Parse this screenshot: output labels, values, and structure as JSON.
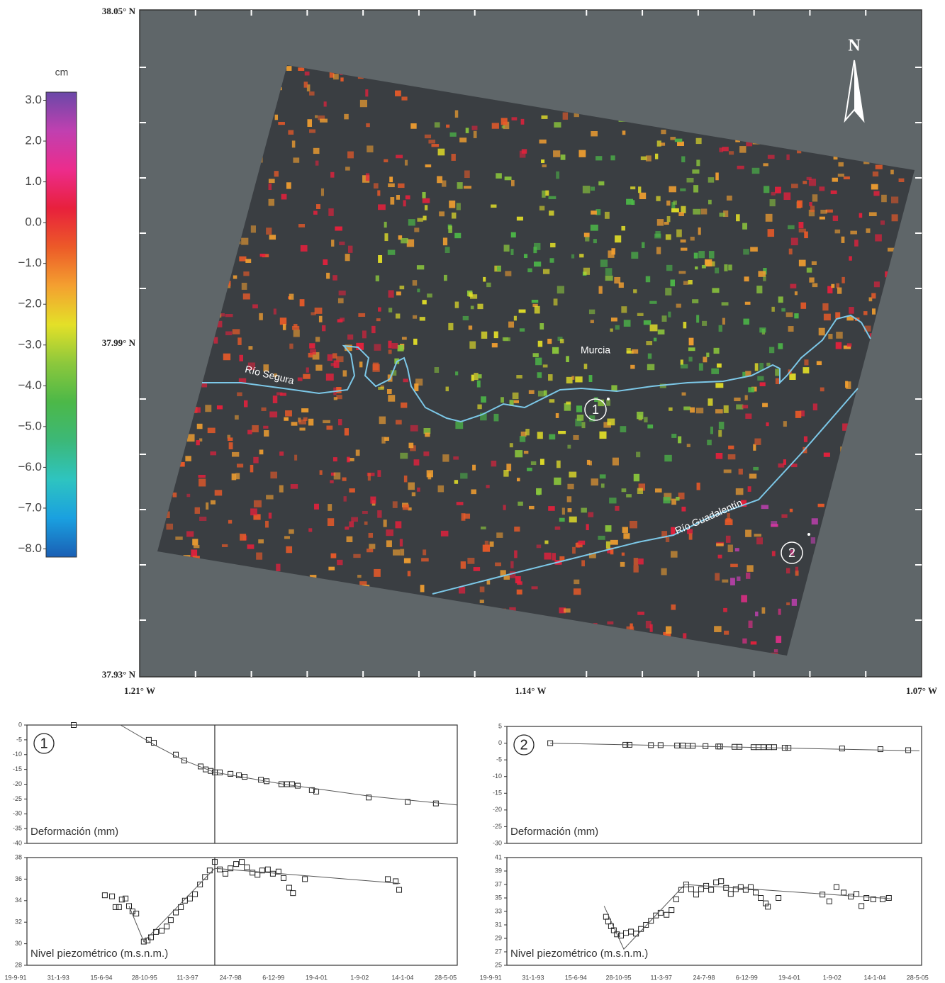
{
  "map": {
    "xlim": [
      -1.21,
      -1.07
    ],
    "ylim": [
      37.93,
      38.05
    ],
    "xticks": [
      {
        "value": -1.21,
        "label": "1.21° W"
      },
      {
        "value": -1.14,
        "label": "1.14° W"
      },
      {
        "value": -1.07,
        "label": "1.07° W"
      }
    ],
    "yticks": [
      {
        "value": 38.05,
        "label": "38.05° N"
      },
      {
        "value": 37.99,
        "label": "37.99° N"
      },
      {
        "value": 37.93,
        "label": "37.93° N"
      }
    ],
    "minor_xticks": [
      -1.2,
      -1.19,
      -1.18,
      -1.17,
      -1.16,
      -1.15,
      -1.13,
      -1.12,
      -1.11,
      -1.1,
      -1.09,
      -1.08
    ],
    "minor_yticks": [
      38.04,
      38.03,
      38.02,
      38.01,
      38.0,
      37.98,
      37.97,
      37.96,
      37.95,
      37.94
    ],
    "north": "N",
    "places": [
      "Murcia",
      "Río Segura",
      "Río Guadalentín"
    ],
    "sites": [
      "1",
      "2"
    ],
    "colorbar": {
      "unit": "cm",
      "clim": [
        -8.2,
        3.2
      ],
      "ticks": [
        {
          "value": 3,
          "label": "3.0"
        },
        {
          "value": 2,
          "label": "2.0"
        },
        {
          "value": 1,
          "label": "1.0"
        },
        {
          "value": 0,
          "label": "0.0"
        },
        {
          "value": -1,
          "label": "−1.0"
        },
        {
          "value": -2,
          "label": "−2.0"
        },
        {
          "value": -3,
          "label": "−3.0"
        },
        {
          "value": -4,
          "label": "−4.0"
        },
        {
          "value": -5,
          "label": "−5.0"
        },
        {
          "value": -6,
          "label": "−6.0"
        },
        {
          "value": -7,
          "label": "−7.0"
        },
        {
          "value": -8,
          "label": "−8.0"
        }
      ],
      "colors": [
        "#1a5fb4",
        "#1aa0e0",
        "#2ec4c0",
        "#3cb878",
        "#4cb848",
        "#8cc83c",
        "#e4e028",
        "#f4a030",
        "#ec5a28",
        "#e8203c",
        "#ec2c8c",
        "#c040b0",
        "#6a48a8"
      ]
    }
  },
  "chart_data": [
    {
      "type": "scatter",
      "point_label": "1",
      "label": "Deformación (mm)",
      "xlim": [
        1992.08,
        2005.78
      ],
      "ylim": [
        -40,
        0
      ],
      "yticks": [
        0,
        -5,
        -10,
        -15,
        -20,
        -25,
        -30,
        -35,
        -40
      ],
      "vline": 1998.06,
      "series": [
        {
          "mark": "square",
          "color": "#222222",
          "x": [
            1993.57,
            1995.96,
            1996.12,
            1996.82,
            1997.09,
            1997.61,
            1997.77,
            1997.93,
            1998.06,
            1998.22,
            1998.56,
            1998.83,
            1999.01,
            1999.53,
            1999.71,
            2000.18,
            2000.36,
            2000.52,
            2000.7,
            2001.15,
            2001.29,
            2002.96,
            2004.2,
            2005.1
          ],
          "values": [
            0,
            -5,
            -6,
            -10,
            -12,
            -14,
            -15,
            -15.5,
            -16,
            -16,
            -16.5,
            -17,
            -17.5,
            -18.5,
            -19,
            -20,
            -20,
            -20,
            -20.5,
            -22,
            -22.5,
            -24.5,
            -26,
            -26.5
          ]
        },
        {
          "mark": "line",
          "color": "#555555",
          "x": [
            1995.06,
            1996.19,
            1997.09,
            1998.06,
            2000.25,
            2002.96,
            2005.77
          ],
          "values": [
            0,
            -7,
            -12,
            -16,
            -20,
            -24,
            -27
          ]
        }
      ]
    },
    {
      "type": "scatter",
      "label": "Nivel piezométrico (m.s.n.m.)",
      "xlim": [
        1992.08,
        2005.78
      ],
      "ylim": [
        28,
        38
      ],
      "yticks": [
        28,
        30,
        32,
        34,
        36,
        38
      ],
      "vline": 1998.06,
      "xticks": [
        {
          "value": 1991.72,
          "label": "19-9-91"
        },
        {
          "value": 1993.08,
          "label": "31-1-93"
        },
        {
          "value": 1994.45,
          "label": "15-6-94"
        },
        {
          "value": 1995.82,
          "label": "28-10-95"
        },
        {
          "value": 1997.19,
          "label": "11-3-97"
        },
        {
          "value": 1998.56,
          "label": "24-7-98"
        },
        {
          "value": 1999.93,
          "label": "6-12-99"
        },
        {
          "value": 2001.3,
          "label": "19-4-01"
        },
        {
          "value": 2002.67,
          "label": "1-9-02"
        },
        {
          "value": 2004.04,
          "label": "14-1-04"
        },
        {
          "value": 2005.41,
          "label": "28-5-05"
        }
      ],
      "series": [
        {
          "mark": "square",
          "color": "#222222",
          "x": [
            1994.56,
            1994.79,
            1994.9,
            1995.01,
            1995.1,
            1995.22,
            1995.33,
            1995.44,
            1995.56,
            1995.8,
            1995.92,
            1996.03,
            1996.19,
            1996.37,
            1996.53,
            1996.66,
            1996.82,
            1996.98,
            1997.11,
            1997.27,
            1997.43,
            1997.59,
            1997.75,
            1997.9,
            1998.06,
            1998.22,
            1998.4,
            1998.56,
            1998.74,
            1998.92,
            1999.08,
            1999.26,
            1999.42,
            1999.57,
            1999.75,
            1999.91,
            2000.09,
            2000.25,
            2000.43,
            2000.55,
            2000.93,
            2003.57,
            2003.82,
            2003.93
          ],
          "values": [
            34.5,
            34.4,
            33.4,
            33.4,
            34.1,
            34.2,
            33.5,
            33,
            32.8,
            30.2,
            30.3,
            30.6,
            31.1,
            31.2,
            31.6,
            32.2,
            32.9,
            33.4,
            34,
            34.2,
            34.6,
            35.5,
            36.2,
            36.8,
            37.6,
            36.9,
            36.5,
            37,
            37.4,
            37.6,
            37.1,
            36.6,
            36.4,
            36.8,
            36.9,
            36.5,
            36.7,
            36.1,
            35.2,
            34.7,
            36,
            36,
            35.8,
            35
          ]
        },
        {
          "mark": "line",
          "color": "#555555",
          "x": [
            1995.33,
            1995.8,
            1998.06,
            2003.96
          ],
          "values": [
            33.5,
            30.2,
            37,
            35.6
          ]
        }
      ]
    },
    {
      "type": "scatter",
      "point_label": "2",
      "label": "Deformación (mm)",
      "xlim": [
        1992.24,
        2005.54
      ],
      "ylim": [
        -30,
        5
      ],
      "yticks": [
        5,
        0,
        -5,
        -10,
        -15,
        -20,
        -25,
        -30
      ],
      "series": [
        {
          "mark": "square",
          "color": "#222222",
          "x": [
            1993.63,
            1996.04,
            1996.17,
            1996.86,
            1997.17,
            1997.7,
            1997.88,
            1998.04,
            1998.2,
            1998.61,
            1999.02,
            1999.08,
            1999.54,
            1999.7,
            2000.15,
            2000.31,
            2000.47,
            2000.65,
            2000.81,
            2001.15,
            2001.27,
            2002.99,
            2004.22,
            2005.11
          ],
          "values": [
            0,
            -0.5,
            -0.5,
            -0.6,
            -0.6,
            -0.7,
            -0.7,
            -0.8,
            -0.8,
            -0.9,
            -1,
            -1,
            -1.1,
            -1.1,
            -1.2,
            -1.2,
            -1.2,
            -1.2,
            -1.2,
            -1.4,
            -1.4,
            -1.6,
            -1.8,
            -2.1
          ]
        },
        {
          "mark": "line",
          "color": "#555555",
          "x": [
            1993.63,
            2005.47
          ],
          "values": [
            0,
            -2.3
          ]
        }
      ]
    },
    {
      "type": "scatter",
      "label": "Nivel piezométrico (m.s.n.m.)",
      "xlim": [
        1992.24,
        2005.54
      ],
      "ylim": [
        25,
        41
      ],
      "yticks": [
        25,
        27,
        29,
        31,
        33,
        35,
        37,
        39,
        41
      ],
      "xticks": [
        {
          "value": 1991.72,
          "label": "19-9-91"
        },
        {
          "value": 1993.08,
          "label": "31-1-93"
        },
        {
          "value": 1994.45,
          "label": "15-6-94"
        },
        {
          "value": 1995.82,
          "label": "28-10-95"
        },
        {
          "value": 1997.19,
          "label": "11-3-97"
        },
        {
          "value": 1998.56,
          "label": "24-7-98"
        },
        {
          "value": 1999.93,
          "label": "6-12-99"
        },
        {
          "value": 2001.3,
          "label": "19-4-01"
        },
        {
          "value": 2002.67,
          "label": "1-9-02"
        },
        {
          "value": 2004.04,
          "label": "14-1-04"
        },
        {
          "value": 2005.41,
          "label": "28-5-05"
        }
      ],
      "series": [
        {
          "mark": "square",
          "color": "#222222",
          "x": [
            1995.42,
            1995.49,
            1995.58,
            1995.67,
            1995.77,
            1995.9,
            1996.06,
            1996.22,
            1996.38,
            1996.54,
            1996.7,
            1996.86,
            1997.02,
            1997.17,
            1997.36,
            1997.52,
            1997.67,
            1997.83,
            1997.99,
            1998.15,
            1998.31,
            1998.47,
            1998.63,
            1998.79,
            1998.95,
            1999.11,
            1999.27,
            1999.42,
            1999.58,
            1999.74,
            1999.9,
            2000.06,
            2000.22,
            2000.38,
            2000.54,
            2000.61,
            2000.95,
            2002.36,
            2002.58,
            2002.81,
            2003.04,
            2003.27,
            2003.45,
            2003.61,
            2003.77,
            2003.99,
            2004.29,
            2004.49
          ],
          "values": [
            32.2,
            31.5,
            30.8,
            30.2,
            29.6,
            29.4,
            29.8,
            30,
            29.7,
            30.4,
            31,
            31.6,
            32.4,
            32.8,
            32.5,
            33.2,
            34.8,
            36.2,
            37,
            36.3,
            35.5,
            36.3,
            36.8,
            36.2,
            37.3,
            37.5,
            36.5,
            35.6,
            36.3,
            36.6,
            36.2,
            36.6,
            35.8,
            35,
            34.2,
            33.7,
            35,
            35.5,
            34.5,
            36.6,
            35.8,
            35.2,
            35.6,
            33.8,
            35,
            34.8,
            34.8,
            35
          ]
        },
        {
          "mark": "line",
          "color": "#555555",
          "x": [
            1995.36,
            1995.99,
            1997.95,
            2004.54
          ],
          "values": [
            33.8,
            27.4,
            37,
            34.9
          ]
        }
      ]
    }
  ]
}
